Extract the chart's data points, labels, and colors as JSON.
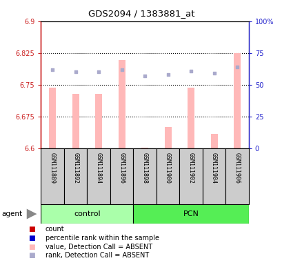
{
  "title": "GDS2094 / 1383881_at",
  "samples": [
    "GSM111889",
    "GSM111892",
    "GSM111894",
    "GSM111896",
    "GSM111898",
    "GSM111900",
    "GSM111902",
    "GSM111904",
    "GSM111906"
  ],
  "groups": [
    "control",
    "control",
    "control",
    "control",
    "PCN",
    "PCN",
    "PCN",
    "PCN",
    "PCN"
  ],
  "bar_values": [
    6.744,
    6.728,
    6.728,
    6.808,
    6.601,
    6.65,
    6.744,
    6.635,
    6.825
  ],
  "rank_values_pct": [
    62,
    60,
    60,
    62,
    57,
    58,
    61,
    59,
    64
  ],
  "ylim_left": [
    6.6,
    6.9
  ],
  "ylim_right": [
    0,
    100
  ],
  "yticks_left": [
    6.6,
    6.675,
    6.75,
    6.825,
    6.9
  ],
  "ytick_labels_left": [
    "6.6",
    "6.675",
    "6.75",
    "6.825",
    "6.9"
  ],
  "yticks_right": [
    0,
    25,
    50,
    75,
    100
  ],
  "ytick_labels_right": [
    "0",
    "25",
    "50",
    "75",
    "100%"
  ],
  "hlines": [
    6.675,
    6.75,
    6.825
  ],
  "bar_color": "#ffb8b8",
  "rank_color": "#aaaacc",
  "bar_bottom": 6.6,
  "bar_width": 0.3,
  "control_color": "#aaffaa",
  "pcn_color": "#55ee55",
  "control_label": "control",
  "pcn_label": "PCN",
  "legend_items": [
    {
      "label": "count",
      "color": "#cc0000"
    },
    {
      "label": "percentile rank within the sample",
      "color": "#0000cc"
    },
    {
      "label": "value, Detection Call = ABSENT",
      "color": "#ffb8b8"
    },
    {
      "label": "rank, Detection Call = ABSENT",
      "color": "#aaaacc"
    }
  ],
  "agent_label": "agent",
  "left_axis_color": "#cc2222",
  "right_axis_color": "#2222cc",
  "sample_box_color": "#cccccc",
  "title_fontsize": 9.5,
  "tick_fontsize": 7,
  "legend_fontsize": 7,
  "sample_fontsize": 6
}
